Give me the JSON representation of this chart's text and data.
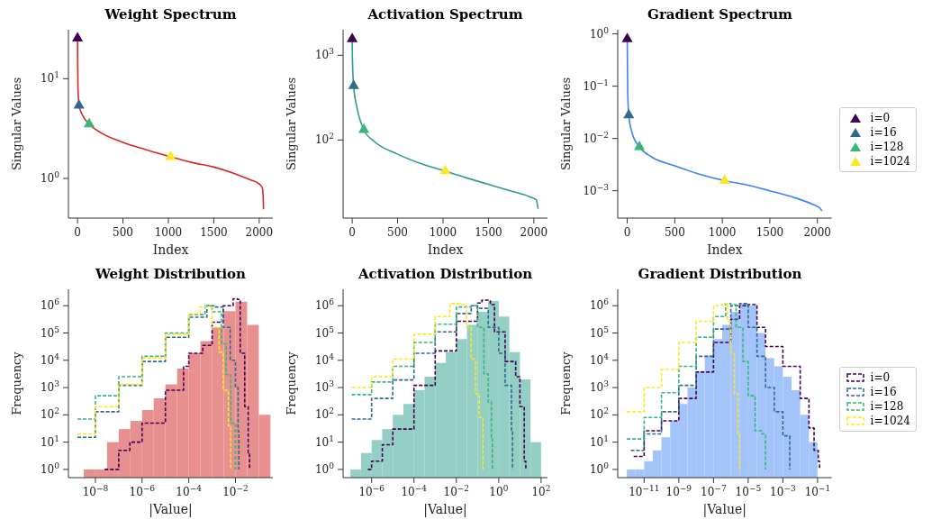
{
  "chart_data": [
    {
      "type": "line",
      "title": "Weight Spectrum",
      "xlabel": "Index",
      "ylabel": "Singular Values",
      "log": "y",
      "xlim": [
        -100,
        2150
      ],
      "xticks": [
        0,
        500,
        1000,
        1500,
        2000
      ],
      "ylim": [
        0.4,
        31
      ],
      "yticks": [
        {
          "value": 1,
          "label": "10$^{0}$"
        },
        {
          "value": 10,
          "label": "10$^{1}$"
        }
      ],
      "series": [
        {
          "type": "line",
          "color": "#d62728",
          "x": [
            0,
            2,
            5,
            10,
            16,
            50,
            128,
            250,
            500,
            750,
            1024,
            1250,
            1500,
            1750,
            1900,
            2000,
            2035,
            2045,
            2047
          ],
          "values": [
            25.5,
            15,
            8,
            6.5,
            5.4,
            4.4,
            3.5,
            2.9,
            2.3,
            1.95,
            1.65,
            1.45,
            1.3,
            1.1,
            0.97,
            0.88,
            0.8,
            0.6,
            0.49
          ]
        },
        {
          "type": "scatter",
          "marker": "triangle",
          "color": "#440154",
          "x": [
            0
          ],
          "values": [
            25.5
          ]
        },
        {
          "type": "scatter",
          "marker": "triangle",
          "color": "#31688e",
          "x": [
            16
          ],
          "values": [
            5.4
          ]
        },
        {
          "type": "scatter",
          "marker": "triangle",
          "color": "#35b779",
          "x": [
            128
          ],
          "values": [
            3.5
          ]
        },
        {
          "type": "scatter",
          "marker": "triangle",
          "color": "#fde725",
          "x": [
            1024
          ],
          "values": [
            1.65
          ]
        }
      ]
    },
    {
      "type": "line",
      "title": "Activation Spectrum",
      "xlabel": "Index",
      "ylabel": "Singular Values",
      "log": "y",
      "xlim": [
        -100,
        2150
      ],
      "xticks": [
        0,
        500,
        1000,
        1500,
        2000
      ],
      "ylim": [
        12,
        2000
      ],
      "yticks": [
        {
          "value": 100,
          "label": "10$^{2}$"
        },
        {
          "value": 1000,
          "label": "10$^{3}$"
        }
      ],
      "series": [
        {
          "type": "line",
          "color": "#2a9d8f",
          "x": [
            0,
            3,
            16,
            50,
            128,
            250,
            500,
            750,
            1024,
            1250,
            1500,
            1750,
            1950,
            2030,
            2040,
            2047
          ],
          "values": [
            1560,
            900,
            435,
            250,
            132,
            95,
            68,
            53,
            43,
            36,
            30,
            25,
            21.5,
            19.5,
            17,
            15.5
          ]
        },
        {
          "type": "scatter",
          "marker": "triangle",
          "color": "#440154",
          "x": [
            0
          ],
          "values": [
            1560
          ]
        },
        {
          "type": "scatter",
          "marker": "triangle",
          "color": "#31688e",
          "x": [
            16
          ],
          "values": [
            435
          ]
        },
        {
          "type": "scatter",
          "marker": "triangle",
          "color": "#35b779",
          "x": [
            128
          ],
          "values": [
            132
          ]
        },
        {
          "type": "scatter",
          "marker": "triangle",
          "color": "#fde725",
          "x": [
            1024
          ],
          "values": [
            43
          ]
        }
      ]
    },
    {
      "type": "line",
      "title": "Gradient Spectrum",
      "xlabel": "Index",
      "ylabel": "Singular Values",
      "log": "y",
      "legend": "right",
      "xlim": [
        -100,
        2150
      ],
      "xticks": [
        0,
        500,
        1000,
        1500,
        2000
      ],
      "ylim": [
        0.0003,
        1.2
      ],
      "yticks": [
        {
          "value": 0.001,
          "label": "10$^{−3}$"
        },
        {
          "value": 0.01,
          "label": "10$^{−2}$"
        },
        {
          "value": 0.1,
          "label": "10$^{−1}$"
        },
        {
          "value": 1,
          "label": "10$^{0}$"
        }
      ],
      "series": [
        {
          "type": "line",
          "color": "#3b82f6",
          "x": [
            0,
            2,
            5,
            16,
            50,
            128,
            250,
            500,
            750,
            1024,
            1250,
            1500,
            1750,
            1950,
            2030,
            2047
          ],
          "values": [
            0.8,
            0.3,
            0.08,
            0.028,
            0.013,
            0.0069,
            0.0045,
            0.003,
            0.0021,
            0.00156,
            0.0013,
            0.001,
            0.00075,
            0.00055,
            0.00046,
            0.00041
          ]
        },
        {
          "type": "scatter",
          "marker": "triangle",
          "name": "i=0",
          "color": "#440154",
          "x": [
            0
          ],
          "values": [
            0.8
          ]
        },
        {
          "type": "scatter",
          "marker": "triangle",
          "name": "i=16",
          "color": "#31688e",
          "x": [
            16
          ],
          "values": [
            0.028
          ]
        },
        {
          "type": "scatter",
          "marker": "triangle",
          "name": "i=128",
          "color": "#35b779",
          "x": [
            128
          ],
          "values": [
            0.0069
          ]
        },
        {
          "type": "scatter",
          "marker": "triangle",
          "name": "i=1024",
          "color": "#fde725",
          "x": [
            1024
          ],
          "values": [
            0.00156
          ]
        }
      ]
    },
    {
      "type": "histogram",
      "title": "Weight Distribution",
      "xlabel": "|Value|",
      "ylabel": "Frequency",
      "log": "xy",
      "line_style": "dashed",
      "color": "#e8908f",
      "xlim": [
        7e-10,
        0.4
      ],
      "xticks": [
        {
          "value": 1e-08,
          "label": "10$^{−8}$"
        },
        {
          "value": 1e-06,
          "label": "10$^{−6}$"
        },
        {
          "value": 0.0001,
          "label": "10$^{−4}$"
        },
        {
          "value": 0.01,
          "label": "10$^{−2}$"
        }
      ],
      "ylim": [
        0.5,
        4000000
      ],
      "yticks": [
        {
          "value": 1,
          "label": "10$^{0}$"
        },
        {
          "value": 10,
          "label": "10$^{1}$"
        },
        {
          "value": 100,
          "label": "10$^{2}$"
        },
        {
          "value": 1000,
          "label": "10$^{3}$"
        },
        {
          "value": 10000,
          "label": "10$^{4}$"
        },
        {
          "value": 100000,
          "label": "10$^{5}$"
        },
        {
          "value": 1000000,
          "label": "10$^{6}$"
        }
      ],
      "bins": [
        3.16e-09,
        1e-08,
        3.16e-08,
        1e-07,
        3.16e-07,
        1e-06,
        3.16e-06,
        1e-05,
        3.16e-05,
        0.0001,
        0.000316,
        0.001,
        0.00316,
        0.01,
        0.0316,
        0.1,
        0.316
      ],
      "values": [
        1,
        1,
        10,
        30,
        60,
        150,
        400,
        1300,
        5000,
        18000,
        50000,
        160000,
        630000,
        1400000,
        200000,
        100
      ],
      "series": [
        {
          "type": "step",
          "color": "#440154",
          "x": [
            2.5e-08,
            1e-07,
            3e-07,
            1e-06,
            1e-05,
            6e-05,
            0.0001,
            0.0004,
            0.001,
            0.003,
            0.008,
            0.012,
            0.016,
            0.025,
            0.035,
            0.04
          ],
          "values": [
            1,
            5,
            10,
            50,
            800,
            6000,
            18000,
            35000,
            250000,
            1000000,
            1800000,
            1700000,
            18000,
            200,
            4,
            1
          ]
        },
        {
          "type": "step",
          "color": "#31688e",
          "x": [
            1.7e-09,
            1e-08,
            1e-07,
            1e-06,
            1e-05,
            0.0001,
            0.0006,
            0.0012,
            0.003,
            0.006,
            0.01,
            0.013,
            0.014
          ],
          "values": [
            15,
            130,
            1200,
            9000,
            70000,
            380000,
            1000000,
            900000,
            160000,
            10000,
            1000,
            25,
            1
          ]
        },
        {
          "type": "step",
          "color": "#35b779",
          "x": [
            1.7e-09,
            1e-08,
            1e-07,
            1e-06,
            1e-05,
            0.0001,
            0.0005,
            0.001,
            0.0025,
            0.004,
            0.0063,
            0.01
          ],
          "values": [
            70,
            500,
            2500,
            14000,
            100000,
            470000,
            1000000,
            600000,
            40000,
            3000,
            50,
            1
          ]
        },
        {
          "type": "step",
          "color": "#fde725",
          "x": [
            1.7e-09,
            1e-08,
            1e-07,
            1e-06,
            1e-05,
            0.0001,
            0.0003,
            0.0005,
            0.001,
            0.002,
            0.003,
            0.005,
            0.0063
          ],
          "values": [
            20,
            200,
            1300,
            12000,
            90000,
            500000,
            900000,
            900000,
            160000,
            20000,
            800,
            40,
            1
          ]
        }
      ]
    },
    {
      "type": "histogram",
      "title": "Activation Distribution",
      "xlabel": "|Value|",
      "ylabel": "Frequency",
      "log": "xy",
      "line_style": "dashed",
      "color": "#94cfc5",
      "xlim": [
        4.5e-08,
        200
      ],
      "xticks": [
        {
          "value": 1e-06,
          "label": "10$^{−6}$"
        },
        {
          "value": 0.0001,
          "label": "10$^{−4}$"
        },
        {
          "value": 0.01,
          "label": "10$^{−2}$"
        },
        {
          "value": 1,
          "label": "10$^{0}$"
        },
        {
          "value": 100,
          "label": "10$^{2}$"
        }
      ],
      "ylim": [
        0.5,
        4000000
      ],
      "yticks": [
        {
          "value": 1,
          "label": "10$^{0}$"
        },
        {
          "value": 10,
          "label": "10$^{1}$"
        },
        {
          "value": 100,
          "label": "10$^{2}$"
        },
        {
          "value": 1000,
          "label": "10$^{3}$"
        },
        {
          "value": 10000,
          "label": "10$^{4}$"
        },
        {
          "value": 100000,
          "label": "10$^{5}$"
        },
        {
          "value": 1000000,
          "label": "10$^{6}$"
        }
      ],
      "bins": [
        1e-07,
        3.16e-07,
        1e-06,
        3.16e-06,
        1e-05,
        3.16e-05,
        0.0001,
        0.000316,
        0.001,
        0.00316,
        0.01,
        0.0316,
        0.1,
        0.316,
        1,
        3.16,
        10,
        31.6,
        100
      ],
      "values": [
        1,
        4,
        12,
        30,
        100,
        250,
        800,
        2500,
        8000,
        20000,
        60000,
        200000,
        600000,
        1500000,
        400000,
        20000,
        2000,
        10
      ],
      "series": [
        {
          "type": "step",
          "color": "#440154",
          "x": [
            6.6e-07,
            1e-06,
            3.2e-06,
            1e-05,
            0.0001,
            0.001,
            0.01,
            0.1,
            0.16,
            0.4,
            0.63,
            2,
            6.3,
            10,
            16,
            19
          ],
          "values": [
            1,
            2,
            8,
            30,
            1200,
            22000,
            270000,
            1250000,
            1600000,
            1100000,
            110000,
            9000,
            2500,
            200,
            2,
            1
          ]
        },
        {
          "type": "step",
          "color": "#31688e",
          "x": [
            1.15e-07,
            1e-06,
            1e-05,
            0.0001,
            0.001,
            0.01,
            0.05,
            0.1,
            0.32,
            1,
            2,
            4,
            4.5
          ],
          "values": [
            70,
            400,
            1900,
            18000,
            110000,
            520000,
            1000000,
            800000,
            160000,
            18000,
            1200,
            26,
            1
          ]
        },
        {
          "type": "step",
          "color": "#35b779",
          "x": [
            1.15e-07,
            1e-06,
            1e-05,
            0.0001,
            0.001,
            0.01,
            0.05,
            0.1,
            0.2,
            0.32,
            0.45,
            0.5
          ],
          "values": [
            550,
            1600,
            6000,
            45000,
            210000,
            900000,
            1000000,
            160000,
            3200,
            300,
            13,
            1
          ]
        },
        {
          "type": "step",
          "color": "#fde725",
          "x": [
            1.15e-07,
            1e-06,
            1e-05,
            0.0001,
            0.001,
            0.005,
            0.016,
            0.03,
            0.05,
            0.08,
            0.12,
            0.18
          ],
          "values": [
            1000,
            2500,
            11000,
            90000,
            400000,
            1200000,
            1100000,
            160000,
            11000,
            600,
            80,
            1
          ]
        }
      ]
    },
    {
      "type": "histogram",
      "title": "Gradient Distribution",
      "xlabel": "|Value|",
      "ylabel": "Frequency",
      "log": "xy",
      "line_style": "dashed",
      "color": "#a3c4fb",
      "legend": "right",
      "xlim": [
        3e-13,
        0.65
      ],
      "xticks": [
        {
          "value": 1e-11,
          "label": "10$^{−11}$"
        },
        {
          "value": 1e-09,
          "label": "10$^{−9}$"
        },
        {
          "value": 1e-07,
          "label": "10$^{−7}$"
        },
        {
          "value": 1e-05,
          "label": "10$^{−5}$"
        },
        {
          "value": 0.001,
          "label": "10$^{−3}$"
        },
        {
          "value": 0.1,
          "label": "10$^{−1}$"
        }
      ],
      "ylim": [
        0.5,
        4000000
      ],
      "yticks": [
        {
          "value": 1,
          "label": "10$^{0}$"
        },
        {
          "value": 10,
          "label": "10$^{1}$"
        },
        {
          "value": 100,
          "label": "10$^{2}$"
        },
        {
          "value": 1000,
          "label": "10$^{3}$"
        },
        {
          "value": 10000,
          "label": "10$^{4}$"
        },
        {
          "value": 100000,
          "label": "10$^{5}$"
        },
        {
          "value": 1000000,
          "label": "10$^{6}$"
        }
      ],
      "bins": [
        1e-12,
        3.16e-12,
        1e-11,
        3.16e-11,
        1e-10,
        3.16e-10,
        1e-09,
        3.16e-09,
        1e-08,
        3.16e-08,
        1e-07,
        3.16e-07,
        1e-06,
        3.16e-06,
        1e-05,
        3.16e-05,
        0.0001,
        0.000316,
        0.001,
        0.00316,
        0.01,
        0.0316,
        0.1
      ],
      "values": [
        1,
        1,
        2,
        5,
        15,
        60,
        250,
        1000,
        4000,
        15000,
        60000,
        200000,
        600000,
        1200000,
        1000000,
        100000,
        12000,
        6000,
        2500,
        800,
        100,
        10
      ],
      "series": [
        {
          "type": "step",
          "name": "i=0",
          "color": "#440154",
          "x": [
            2.5e-12,
            1e-11,
            1e-10,
            1e-09,
            1e-08,
            1e-07,
            1e-06,
            3.2e-06,
            1e-05,
            3.2e-05,
            0.0001,
            0.001,
            0.01,
            0.032,
            0.063,
            0.11,
            0.13
          ],
          "values": [
            3,
            26,
            60,
            400,
            3700,
            45000,
            320000,
            1000000,
            1100000,
            160000,
            32000,
            6000,
            400,
            33,
            5,
            2,
            1
          ]
        },
        {
          "type": "step",
          "name": "i=16",
          "color": "#31688e",
          "x": [
            1.7e-12,
            1e-11,
            1e-10,
            1e-09,
            1e-08,
            1e-07,
            1e-06,
            3.2e-06,
            1e-05,
            3.2e-05,
            0.0001,
            0.00032,
            0.001,
            0.0025
          ],
          "values": [
            5,
            20,
            130,
            1200,
            14000,
            140000,
            1000000,
            1200000,
            160000,
            14000,
            1000,
            130,
            17,
            1
          ]
        },
        {
          "type": "step",
          "name": "i=128",
          "color": "#35b779",
          "x": [
            1e-12,
            1e-11,
            1e-10,
            1e-09,
            1e-08,
            1e-07,
            5e-07,
            1e-06,
            2e-06,
            5e-06,
            1e-05,
            2.5e-05,
            6.3e-05,
            0.0001
          ],
          "values": [
            13,
            80,
            650,
            6000,
            70000,
            400000,
            1200000,
            1100000,
            160000,
            9000,
            500,
            26,
            20,
            1
          ]
        },
        {
          "type": "step",
          "name": "i=1024",
          "color": "#fde725",
          "x": [
            1e-12,
            1e-11,
            1e-10,
            1e-09,
            1e-08,
            1e-07,
            3.2e-07,
            6.3e-07,
            1e-06,
            1.6e-06,
            2.5e-06,
            3.2e-06
          ],
          "values": [
            130,
            1000,
            4700,
            45000,
            270000,
            1000000,
            1200000,
            270000,
            18000,
            600,
            20,
            1
          ]
        }
      ]
    }
  ]
}
